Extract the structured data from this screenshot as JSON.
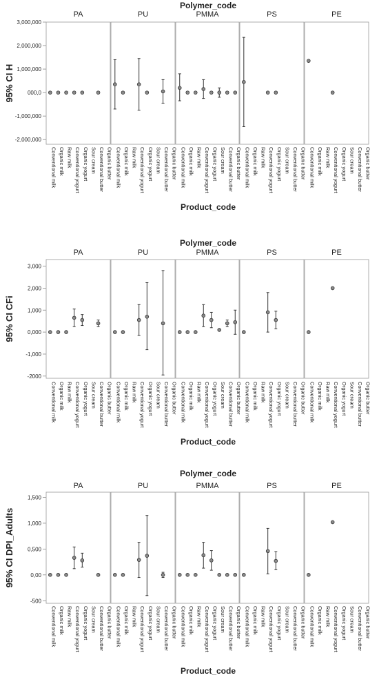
{
  "chart_data": [
    {
      "type": "errorbar",
      "facet_title": "Polymer_code",
      "ylabel": "95% CI H",
      "xlabel": "Product_code",
      "yticks": [
        -2000000,
        -1000000,
        0,
        1000000,
        2000000,
        3000000
      ],
      "ytick_labels": [
        "-2,000,000",
        "-1,000,000",
        "000,0",
        "1,000,000",
        "2,000,000",
        "3,000,000"
      ],
      "ylim": [
        -2200000,
        3000000
      ],
      "facets": [
        {
          "name": "PA",
          "categories": [
            "Conventional milk",
            "Organic milk",
            "Raw milk",
            "Conventional yogurt",
            "Organic yogurt",
            "Sour cream",
            "Conventional butter",
            "Organic butter"
          ],
          "points": [
            [
              0,
              0,
              0,
              0
            ],
            [
              1,
              0,
              0,
              0
            ],
            [
              2,
              0,
              0,
              0
            ],
            [
              3,
              0,
              0,
              0
            ],
            [
              4,
              0,
              0,
              0
            ],
            [
              6,
              0,
              0,
              0
            ]
          ]
        },
        {
          "name": "PU",
          "categories": [
            "Conventional milk",
            "Organic milk",
            "Raw milk",
            "Conventional yogurt",
            "Organic yogurt",
            "Sour cream",
            "Conventional butter",
            "Organic butter"
          ],
          "points": [
            [
              0,
              350000,
              -700000,
              1400000
            ],
            [
              1,
              0,
              0,
              0
            ],
            [
              3,
              350000,
              -750000,
              1450000
            ],
            [
              4,
              0,
              0,
              0
            ],
            [
              6,
              50000,
              -450000,
              550000
            ]
          ]
        },
        {
          "name": "PMMA",
          "categories": [
            "Conventional milk",
            "Organic milk",
            "Raw milk",
            "Conventional yogurt",
            "Organic yogurt",
            "Sour cream",
            "Conventional butter",
            "Organic butter"
          ],
          "points": [
            [
              0,
              200000,
              -350000,
              800000
            ],
            [
              1,
              0,
              0,
              0
            ],
            [
              2,
              0,
              0,
              0
            ],
            [
              3,
              150000,
              -250000,
              550000
            ],
            [
              4,
              0,
              0,
              0
            ],
            [
              5,
              0,
              -200000,
              200000
            ],
            [
              6,
              0,
              0,
              0
            ],
            [
              7,
              0,
              0,
              0
            ]
          ]
        },
        {
          "name": "PS",
          "categories": [
            "Conventional milk",
            "Organic milk",
            "Raw milk",
            "Conventional yogurt",
            "Organic yogurt",
            "Sour cream",
            "Conventional butter",
            "Organic butter"
          ],
          "points": [
            [
              0,
              450000,
              -1450000,
              2350000
            ],
            [
              3,
              0,
              0,
              0
            ],
            [
              4,
              0,
              0,
              0
            ]
          ]
        },
        {
          "name": "PE",
          "categories": [
            "Conventional milk",
            "Organic milk",
            "Raw milk",
            "Conventional yogurt",
            "Organic yogurt",
            "Sour cream",
            "Conventional butter",
            "Organic butter"
          ],
          "points": [
            [
              0,
              1350000,
              1350000,
              1350000
            ],
            [
              3,
              0,
              0,
              0
            ]
          ]
        }
      ]
    },
    {
      "type": "errorbar",
      "facet_title": "Polymer_code",
      "ylabel": "95% CI CFi",
      "xlabel": "Product_code",
      "yticks": [
        -2000,
        -1000,
        0,
        1000,
        2000,
        3000
      ],
      "ytick_labels": [
        "-2000",
        "-1,000",
        "0,000",
        "1,000",
        "2,000",
        "3,000"
      ],
      "ylim": [
        -2100,
        3300
      ],
      "facets": [
        {
          "name": "PA",
          "categories": [
            "Conventional milk",
            "Organic milk",
            "Raw milk",
            "Conventional yogurt",
            "Organic yogurt",
            "Sour cream",
            "Conventional butter",
            "Organic butter"
          ],
          "points": [
            [
              0,
              0,
              0,
              0
            ],
            [
              1,
              0,
              0,
              0
            ],
            [
              2,
              0,
              0,
              0
            ],
            [
              3,
              650,
              250,
              1050
            ],
            [
              4,
              550,
              300,
              800
            ],
            [
              6,
              400,
              250,
              550
            ]
          ]
        },
        {
          "name": "PU",
          "categories": [
            "Conventional milk",
            "Organic milk",
            "Raw milk",
            "Conventional yogurt",
            "Organic yogurt",
            "Sour cream",
            "Conventional butter",
            "Organic butter"
          ],
          "points": [
            [
              0,
              0,
              0,
              0
            ],
            [
              1,
              0,
              0,
              0
            ],
            [
              3,
              550,
              -150,
              1250
            ],
            [
              4,
              700,
              -800,
              2250
            ],
            [
              6,
              400,
              -1950,
              2800
            ]
          ]
        },
        {
          "name": "PMMA",
          "categories": [
            "Conventional milk",
            "Organic milk",
            "Raw milk",
            "Conventional yogurt",
            "Organic yogurt",
            "Sour cream",
            "Conventional butter",
            "Organic butter"
          ],
          "points": [
            [
              0,
              0,
              0,
              0
            ],
            [
              1,
              0,
              0,
              0
            ],
            [
              2,
              0,
              0,
              0
            ],
            [
              3,
              750,
              250,
              1250
            ],
            [
              4,
              550,
              200,
              900
            ],
            [
              5,
              100,
              100,
              100
            ],
            [
              6,
              400,
              250,
              550
            ],
            [
              7,
              450,
              -100,
              1000
            ]
          ]
        },
        {
          "name": "PS",
          "categories": [
            "Conventional milk",
            "Organic milk",
            "Raw milk",
            "Conventional yogurt",
            "Organic yogurt",
            "Sour cream",
            "Conventional butter",
            "Organic butter"
          ],
          "points": [
            [
              0,
              0,
              0,
              0
            ],
            [
              3,
              900,
              0,
              1800
            ],
            [
              4,
              550,
              150,
              950
            ]
          ]
        },
        {
          "name": "PE",
          "categories": [
            "Conventional milk",
            "Organic milk",
            "Raw milk",
            "Conventional yogurt",
            "Organic yogurt",
            "Sour cream",
            "Conventional butter",
            "Organic butter"
          ],
          "points": [
            [
              0,
              0,
              0,
              0
            ],
            [
              3,
              2000,
              2000,
              2000
            ]
          ]
        }
      ]
    },
    {
      "type": "errorbar",
      "facet_title": "Polymer_code",
      "ylabel": "95% CI DPI_Adults",
      "xlabel": "Product_code",
      "yticks": [
        -500,
        0,
        500,
        1000,
        1500
      ],
      "ytick_labels": [
        "-500",
        "0,00",
        "0,500",
        "1,000",
        "1,500"
      ],
      "ylim": [
        -550,
        1600
      ],
      "facets": [
        {
          "name": "PA",
          "categories": [
            "Conventional milk",
            "Organic milk",
            "Raw milk",
            "Conventional yogurt",
            "Organic yogurt",
            "Sour cream",
            "Conventional butter",
            "Organic butter"
          ],
          "points": [
            [
              0,
              0,
              0,
              0
            ],
            [
              1,
              0,
              0,
              0
            ],
            [
              2,
              0,
              0,
              0
            ],
            [
              3,
              330,
              120,
              540
            ],
            [
              4,
              280,
              150,
              420
            ],
            [
              6,
              0,
              0,
              0
            ]
          ]
        },
        {
          "name": "PU",
          "categories": [
            "Conventional milk",
            "Organic milk",
            "Raw milk",
            "Conventional yogurt",
            "Organic yogurt",
            "Sour cream",
            "Conventional butter",
            "Organic butter"
          ],
          "points": [
            [
              0,
              0,
              0,
              0
            ],
            [
              1,
              0,
              0,
              0
            ],
            [
              3,
              290,
              -50,
              630
            ],
            [
              4,
              370,
              -400,
              1150
            ],
            [
              6,
              0,
              -50,
              50
            ]
          ]
        },
        {
          "name": "PMMA",
          "categories": [
            "Conventional milk",
            "Organic milk",
            "Raw milk",
            "Conventional yogurt",
            "Organic yogurt",
            "Sour cream",
            "Conventional butter",
            "Organic butter"
          ],
          "points": [
            [
              0,
              0,
              0,
              0
            ],
            [
              1,
              0,
              0,
              0
            ],
            [
              2,
              0,
              0,
              0
            ],
            [
              3,
              380,
              130,
              630
            ],
            [
              4,
              280,
              90,
              470
            ],
            [
              5,
              0,
              0,
              0
            ],
            [
              6,
              0,
              0,
              0
            ],
            [
              7,
              0,
              0,
              0
            ]
          ]
        },
        {
          "name": "PS",
          "categories": [
            "Conventional milk",
            "Organic milk",
            "Raw milk",
            "Conventional yogurt",
            "Organic yogurt",
            "Sour cream",
            "Conventional butter",
            "Organic butter"
          ],
          "points": [
            [
              0,
              0,
              0,
              0
            ],
            [
              3,
              460,
              20,
              900
            ],
            [
              4,
              270,
              100,
              450
            ]
          ]
        },
        {
          "name": "PE",
          "categories": [
            "Conventional milk",
            "Organic milk",
            "Raw milk",
            "Conventional yogurt",
            "Organic yogurt",
            "Sour cream",
            "Conventional butter",
            "Organic butter"
          ],
          "points": [
            [
              0,
              0,
              0,
              0
            ],
            [
              3,
              1020,
              1020,
              1020
            ]
          ]
        }
      ]
    }
  ]
}
